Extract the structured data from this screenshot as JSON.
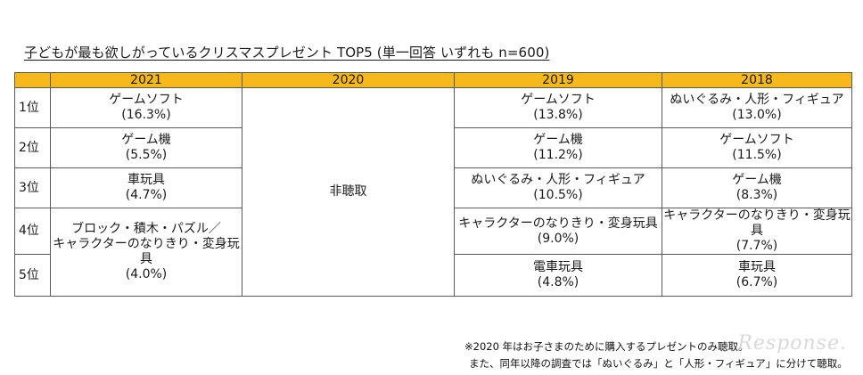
{
  "title": "子どもが最も欲しがっているクリスマスプレゼント TOP5 (単一回答 いずれも n=600)",
  "table": {
    "headers": [
      "",
      "2021",
      "2020",
      "2019",
      "2018"
    ],
    "ranks": [
      "1位",
      "2位",
      "3位",
      "4位",
      "5位"
    ],
    "col2020": "非聴取",
    "col2021": [
      "ゲームソフト\n(16.3%)",
      "ゲーム機\n(5.5%)",
      "車玩具\n(4.7%)",
      "ブロック・積木・パズル／\nキャラクターのなりきり・変身玩具\n(4.0%)"
    ],
    "col2019": [
      "ゲームソフト\n(13.8%)",
      "ゲーム機\n(11.2%)",
      "ぬいぐるみ・人形・フィギュア\n(10.5%)",
      "キャラクターのなりきり・変身玩具\n(9.0%)",
      "電車玩具\n(4.8%)"
    ],
    "col2018": [
      "ぬいぐるみ・人形・フィギュア\n(13.0%)",
      "ゲームソフト\n(11.5%)",
      "ゲーム機\n(8.3%)",
      "キャラクターのなりきり・変身玩具\n(7.7%)",
      "車玩具\n(6.7%)"
    ]
  },
  "notes": {
    "line1": "※2020 年はお子さまのために購入するプレゼントのみ聴取。",
    "line2": "また、同年以降の調査では「ぬいぐるみ」と「人形・フィギュア」に分けて聴取。"
  },
  "watermark": "Response."
}
